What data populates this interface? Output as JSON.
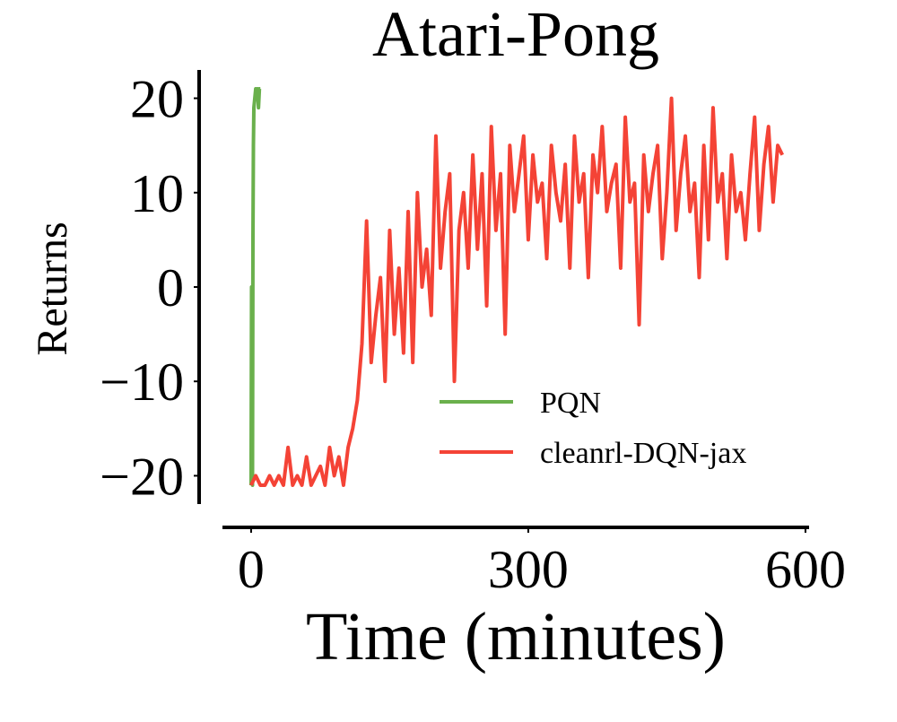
{
  "chart_data": {
    "type": "line",
    "title": "Atari-Pong",
    "xlabel": "Time (minutes)",
    "ylabel": "Returns",
    "xlim": [
      -31,
      602
    ],
    "ylim": [
      -23,
      23
    ],
    "xticks": [
      0,
      300,
      600
    ],
    "yticks": [
      {
        "value": -20,
        "label": "−20"
      },
      {
        "value": -10,
        "label": "−10"
      },
      0,
      10,
      20
    ],
    "grid": false,
    "legend": "lower right",
    "series": [
      {
        "name": "PQN",
        "color": "#6ab04c",
        "x": [
          0,
          0.5,
          1,
          1.5,
          2,
          2.5,
          3,
          4,
          5,
          6,
          7,
          8,
          9,
          10
        ],
        "values": [
          -21,
          0,
          -20,
          -21,
          5,
          15,
          19,
          20,
          21,
          20,
          21,
          19,
          21,
          21
        ]
      },
      {
        "name": "cleanrl-DQN-jax",
        "color": "#f44336",
        "x": [
          0,
          5,
          10,
          15,
          20,
          25,
          30,
          35,
          40,
          45,
          50,
          55,
          60,
          65,
          70,
          75,
          80,
          85,
          90,
          95,
          100,
          105,
          110,
          115,
          120,
          125,
          130,
          135,
          140,
          145,
          150,
          155,
          160,
          165,
          170,
          175,
          180,
          185,
          190,
          195,
          200,
          205,
          210,
          215,
          220,
          225,
          230,
          235,
          240,
          245,
          250,
          255,
          260,
          265,
          270,
          275,
          280,
          285,
          290,
          295,
          300,
          305,
          310,
          315,
          320,
          325,
          330,
          335,
          340,
          345,
          350,
          355,
          360,
          365,
          370,
          375,
          380,
          385,
          390,
          395,
          400,
          405,
          410,
          415,
          420,
          425,
          430,
          435,
          440,
          445,
          450,
          455,
          460,
          465,
          470,
          475,
          480,
          485,
          490,
          495,
          500,
          505,
          510,
          515,
          520,
          525,
          530,
          535,
          540,
          545,
          550,
          555,
          560,
          565,
          570,
          575
        ],
        "values": [
          -21,
          -20,
          -21,
          -21,
          -20,
          -21,
          -20,
          -21,
          -17,
          -21,
          -20,
          -21,
          -18,
          -21,
          -20,
          -19,
          -21,
          -17,
          -20,
          -18,
          -21,
          -17,
          -15,
          -12,
          -6,
          7,
          -8,
          -3,
          1,
          -10,
          6,
          -5,
          2,
          -7,
          8,
          -8,
          10,
          0,
          4,
          -3,
          16,
          2,
          8,
          12,
          -10,
          6,
          10,
          2,
          14,
          4,
          12,
          -2,
          17,
          6,
          12,
          -5,
          15,
          8,
          12,
          16,
          5,
          14,
          9,
          11,
          3,
          15,
          10,
          7,
          13,
          2,
          16,
          9,
          12,
          1,
          14,
          10,
          17,
          8,
          11,
          13,
          2,
          18,
          9,
          11,
          -4,
          14,
          8,
          12,
          15,
          3,
          10,
          20,
          6,
          12,
          16,
          8,
          11,
          1,
          15,
          5,
          19,
          9,
          12,
          3,
          14,
          8,
          10,
          5,
          12,
          18,
          6,
          13,
          17,
          9,
          15,
          14
        ]
      }
    ]
  }
}
